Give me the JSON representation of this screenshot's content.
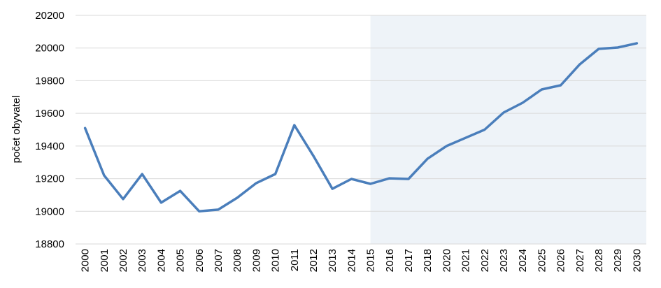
{
  "chart_data": {
    "type": "line",
    "ylabel": "počet obyvatel",
    "categories": [
      "2000",
      "2001",
      "2002",
      "2003",
      "2004",
      "2005",
      "2006",
      "2007",
      "2008",
      "2009",
      "2010",
      "2011",
      "2012",
      "2013",
      "2014",
      "2015",
      "2016",
      "2017",
      "2018",
      "2020",
      "2021",
      "2022",
      "2023",
      "2024",
      "2025",
      "2026",
      "2027",
      "2028",
      "2029",
      "2030"
    ],
    "series": [
      {
        "color": "#4a7ebb",
        "values": [
          19510,
          19220,
          19075,
          19228,
          19053,
          19125,
          19000,
          19010,
          19083,
          19173,
          19228,
          19528,
          19340,
          19138,
          19198,
          19168,
          19202,
          19198,
          19322,
          19400,
          19450,
          19500,
          19605,
          19665,
          19746,
          19772,
          19900,
          19995,
          20003,
          20029
        ]
      }
    ],
    "ylim": [
      18800,
      20200
    ],
    "yticks": [
      18800,
      19000,
      19200,
      19400,
      19600,
      19800,
      20000,
      20200
    ],
    "grid": true,
    "shaded_from": "2015",
    "shade_color": "#eef3f8"
  }
}
